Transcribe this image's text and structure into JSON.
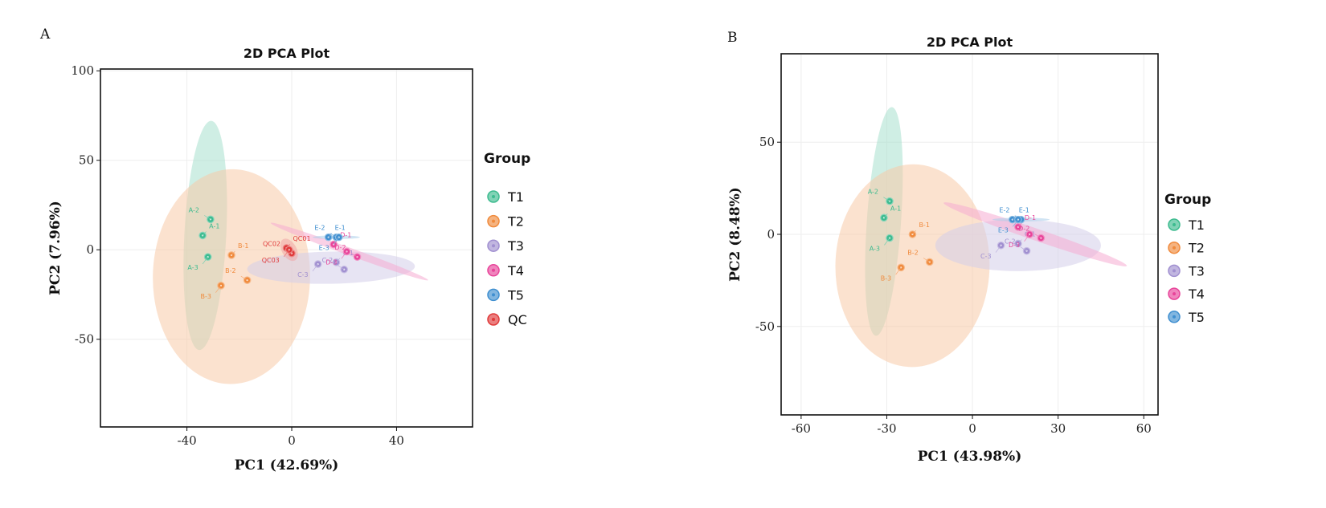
{
  "chart_data": [
    {
      "type": "scatter",
      "panel": "A",
      "title": "2D PCA Plot",
      "xlabel": "PC1 (42.69%)",
      "ylabel": "PC2 (7.96%)",
      "xlim": [
        -73,
        69
      ],
      "ylim": [
        -99,
        101
      ],
      "xticks": [
        -40,
        0,
        40
      ],
      "yticks": [
        100,
        50,
        0,
        -50
      ],
      "grid": true,
      "legend_title": "Group",
      "legend_position": "right",
      "series": [
        {
          "name": "T1",
          "color": "#3dbb8f",
          "points": [
            {
              "label": "A-1",
              "x": -34,
              "y": 8
            },
            {
              "label": "A-2",
              "x": -31,
              "y": 17
            },
            {
              "label": "A-3",
              "x": -32,
              "y": -4
            }
          ]
        },
        {
          "name": "T2",
          "color": "#f08a3c",
          "points": [
            {
              "label": "B-1",
              "x": -23,
              "y": -3
            },
            {
              "label": "B-2",
              "x": -17,
              "y": -17
            },
            {
              "label": "B-3",
              "x": -27,
              "y": -20
            }
          ]
        },
        {
          "name": "T3",
          "color": "#a08fd0",
          "points": [
            {
              "label": "C-1",
              "x": 17,
              "y": -7
            },
            {
              "label": "C-2",
              "x": 20,
              "y": -11
            },
            {
              "label": "C-3",
              "x": 10,
              "y": -8
            }
          ]
        },
        {
          "name": "T4",
          "color": "#e8449a",
          "points": [
            {
              "label": "D-1",
              "x": 16,
              "y": 3
            },
            {
              "label": "D-2",
              "x": 25,
              "y": -4
            },
            {
              "label": "D-3",
              "x": 21,
              "y": -1
            }
          ]
        },
        {
          "name": "T5",
          "color": "#3f8fd0",
          "points": [
            {
              "label": "E-1",
              "x": 14,
              "y": 7
            },
            {
              "label": "E-2",
              "x": 17,
              "y": 7
            },
            {
              "label": "E-3",
              "x": 18,
              "y": 7
            }
          ]
        },
        {
          "name": "QC",
          "color": "#e03a3a",
          "points": [
            {
              "label": "QC01",
              "x": -2,
              "y": 1
            },
            {
              "label": "QC02",
              "x": 0,
              "y": -2
            },
            {
              "label": "QC03",
              "x": -1,
              "y": 0
            }
          ]
        }
      ],
      "ellipses": [
        {
          "group": "T1",
          "cx": -33,
          "cy": 8,
          "rx": 64,
          "ry": 8,
          "angle": 87
        },
        {
          "group": "T2",
          "cx": -23,
          "cy": -15,
          "rx": 60,
          "ry": 30,
          "angle": 89
        },
        {
          "group": "T3",
          "cx": 15,
          "cy": -10,
          "rx": 32,
          "ry": 9,
          "angle": 1
        },
        {
          "group": "T4",
          "cx": 22,
          "cy": -1,
          "rx": 33,
          "ry": 2,
          "angle": -20
        },
        {
          "group": "T5",
          "cx": 17,
          "cy": 7,
          "rx": 9,
          "ry": 1,
          "angle": 0
        },
        {
          "group": "QC",
          "cx": -1,
          "cy": 0,
          "rx": 6,
          "ry": 3,
          "angle": -60
        }
      ]
    },
    {
      "type": "scatter",
      "panel": "B",
      "title": "2D PCA Plot",
      "xlabel": "PC1 (43.98%)",
      "ylabel": "PC2 (8.48%)",
      "xlim": [
        -67,
        65
      ],
      "ylim": [
        -98,
        98
      ],
      "xticks": [
        -60,
        -30,
        0,
        30,
        60
      ],
      "yticks": [
        50,
        0,
        -50
      ],
      "grid": true,
      "legend_title": "Group",
      "legend_position": "right",
      "series": [
        {
          "name": "T1",
          "color": "#3dbb8f",
          "points": [
            {
              "label": "A-1",
              "x": -31,
              "y": 9
            },
            {
              "label": "A-2",
              "x": -29,
              "y": 18
            },
            {
              "label": "A-3",
              "x": -29,
              "y": -2
            }
          ]
        },
        {
          "name": "T2",
          "color": "#f08a3c",
          "points": [
            {
              "label": "B-1",
              "x": -21,
              "y": 0
            },
            {
              "label": "B-2",
              "x": -15,
              "y": -15
            },
            {
              "label": "B-3",
              "x": -25,
              "y": -18
            }
          ]
        },
        {
          "name": "T3",
          "color": "#a08fd0",
          "points": [
            {
              "label": "C-1",
              "x": 16,
              "y": -5
            },
            {
              "label": "C-2",
              "x": 19,
              "y": -9
            },
            {
              "label": "C-3",
              "x": 10,
              "y": -6
            }
          ]
        },
        {
          "name": "T4",
          "color": "#e8449a",
          "points": [
            {
              "label": "D-1",
              "x": 16,
              "y": 4
            },
            {
              "label": "D-2",
              "x": 24,
              "y": -2
            },
            {
              "label": "D-3",
              "x": 20,
              "y": 0
            }
          ]
        },
        {
          "name": "T5",
          "color": "#3f8fd0",
          "points": [
            {
              "label": "E-1",
              "x": 14,
              "y": 8
            },
            {
              "label": "E-2",
              "x": 17,
              "y": 8
            },
            {
              "label": "E-3",
              "x": 16,
              "y": 8
            }
          ]
        }
      ],
      "ellipses": [
        {
          "group": "T1",
          "cx": -31,
          "cy": 7,
          "rx": 62,
          "ry": 6,
          "angle": 86
        },
        {
          "group": "T2",
          "cx": -21,
          "cy": -17,
          "rx": 55,
          "ry": 27,
          "angle": 89
        },
        {
          "group": "T3",
          "cx": 16,
          "cy": -6,
          "rx": 29,
          "ry": 14,
          "angle": 0
        },
        {
          "group": "T4",
          "cx": 22,
          "cy": 0,
          "rx": 35,
          "ry": 3,
          "angle": -19
        },
        {
          "group": "T5",
          "cx": 17,
          "cy": 8,
          "rx": 10,
          "ry": 1,
          "angle": 0
        }
      ]
    }
  ]
}
